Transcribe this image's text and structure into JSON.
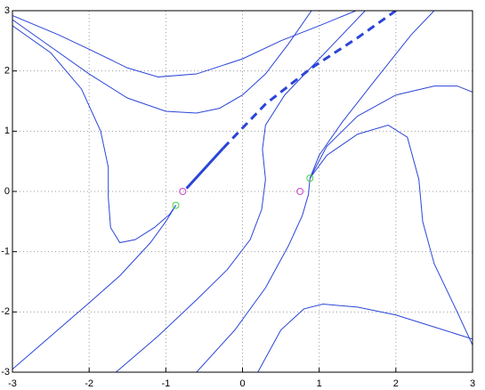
{
  "chart_data": {
    "type": "line",
    "xlim": [
      -3,
      3
    ],
    "ylim": [
      -3,
      3
    ],
    "xticks": [
      -3,
      -2,
      -1,
      0,
      1,
      2,
      3
    ],
    "yticks": [
      -3,
      -2,
      -1,
      0,
      1,
      2,
      3
    ],
    "grid": true,
    "series": [
      {
        "color": "#2a45d8",
        "style": "solid",
        "width": 1,
        "x": [
          -3,
          -2.4,
          -2,
          -1.5,
          -1.1,
          -0.6,
          0,
          0.5,
          1,
          1.48
        ],
        "values": [
          2.92,
          2.6,
          2.36,
          2.05,
          1.9,
          1.95,
          2.2,
          2.5,
          2.75,
          3
        ]
      },
      {
        "color": "#2a45d8",
        "style": "solid",
        "width": 1,
        "x": [
          -3,
          -2.5,
          -2,
          -1.5,
          -1,
          -0.6,
          -0.3,
          0,
          0.3,
          0.6,
          0.9
        ],
        "values": [
          2.85,
          2.4,
          1.95,
          1.55,
          1.33,
          1.3,
          1.38,
          1.6,
          1.95,
          2.45,
          3
        ]
      },
      {
        "color": "#2a45d8",
        "style": "solid",
        "width": 1,
        "x": [
          -3,
          -2.5,
          -2.1,
          -1.85,
          -1.75,
          -1.75,
          -1.72,
          -1.6,
          -1.4,
          -1.15,
          -0.95,
          -0.87
        ],
        "values": [
          2.75,
          2.3,
          1.7,
          1.0,
          0.4,
          -0.1,
          -0.6,
          -0.85,
          -0.8,
          -0.6,
          -0.38,
          -0.23
        ]
      },
      {
        "color": "#2a45d8",
        "style": "solid",
        "width": 1,
        "x": [
          -0.87,
          -1.0,
          -1.2,
          -1.6,
          -2.0,
          -2.5,
          -3
        ],
        "values": [
          -0.23,
          -0.5,
          -0.85,
          -1.4,
          -1.85,
          -2.4,
          -2.95
        ]
      },
      {
        "color": "#2a45d8",
        "style": "solid",
        "width": 1,
        "x": [
          -1.65,
          -1.1,
          -0.6,
          -0.2,
          0.1,
          0.25,
          0.3,
          0.26,
          0.3,
          0.55,
          1.0,
          1.3,
          1.6
        ],
        "values": [
          -3,
          -2.4,
          -1.8,
          -1.3,
          -0.8,
          -0.3,
          0.2,
          0.7,
          1.1,
          1.6,
          2.2,
          2.6,
          3
        ]
      },
      {
        "color": "#2a45d8",
        "style": "solid",
        "width": 1,
        "x": [
          -0.6,
          -0.1,
          0.3,
          0.6,
          0.78,
          0.86,
          0.88
        ],
        "values": [
          -3,
          -2.3,
          -1.6,
          -0.9,
          -0.4,
          -0.05,
          0.22
        ]
      },
      {
        "color": "#2a45d8",
        "style": "solid",
        "width": 1,
        "x": [
          0.88,
          1.1,
          1.5,
          2.0,
          2.5,
          2.8,
          3
        ],
        "values": [
          0.22,
          0.75,
          1.25,
          1.6,
          1.75,
          1.75,
          1.65
        ]
      },
      {
        "color": "#2a45d8",
        "style": "solid",
        "width": 1,
        "x": [
          0.88,
          1.1,
          1.5,
          1.9,
          2.15,
          2.3,
          2.35,
          2.5,
          2.8,
          3
        ],
        "values": [
          0.22,
          0.6,
          0.95,
          1.1,
          0.9,
          0.2,
          -0.5,
          -1.2,
          -2.0,
          -2.55
        ]
      },
      {
        "color": "#2a45d8",
        "style": "solid",
        "width": 1,
        "x": [
          0.88,
          1.0,
          1.3,
          1.7,
          2.2,
          2.5
        ],
        "values": [
          0.22,
          0.6,
          1.15,
          1.8,
          2.6,
          3
        ]
      },
      {
        "color": "#2a45d8",
        "style": "solid",
        "width": 1,
        "x": [
          0.2,
          0.5,
          0.8,
          1.05,
          1.5,
          2.0,
          2.5,
          3
        ],
        "values": [
          -3,
          -2.3,
          -1.95,
          -1.87,
          -1.92,
          -2.05,
          -2.25,
          -2.45
        ]
      },
      {
        "color": "#2a45d8",
        "style": "solid",
        "width": 3,
        "x": [
          -0.73,
          -0.25
        ],
        "values": [
          0.05,
          0.72
        ]
      },
      {
        "color": "#2a45d8",
        "style": "dashed",
        "width": 3,
        "x": [
          -0.25,
          0.3,
          0.9,
          1.5,
          2.0
        ],
        "values": [
          0.72,
          1.45,
          2.05,
          2.55,
          3.0
        ]
      },
      {
        "color": "#d040d0",
        "style": "marker",
        "x": [
          -0.78,
          0.75
        ],
        "values": [
          0,
          0
        ]
      },
      {
        "color": "#40d040",
        "style": "marker",
        "x": [
          -0.87,
          0.88
        ],
        "values": [
          -0.23,
          0.22
        ]
      }
    ]
  }
}
